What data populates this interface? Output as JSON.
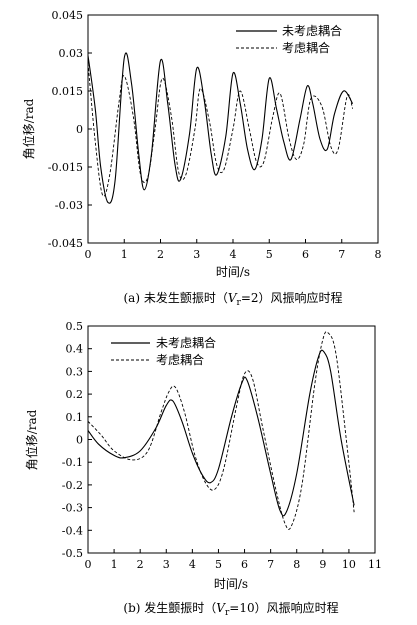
{
  "chart_data": [
    {
      "type": "line",
      "caption_prefix": "(a) 未发生颤振时（",
      "caption_v": "V",
      "caption_sub": "r",
      "caption_suffix": "=2）风振响应时程",
      "xlabel": "时间/s",
      "ylabel": "角位移/rad",
      "xlim": [
        0,
        8
      ],
      "ylim": [
        -0.045,
        0.045
      ],
      "xticks": [
        "0",
        "1",
        "2",
        "3",
        "4",
        "5",
        "6",
        "7",
        "8"
      ],
      "yticks": [
        "0.045",
        "0.03",
        "0.015",
        "0",
        "-0.015",
        "-0.03",
        "-0.045"
      ],
      "legend_position": "top-right",
      "series": [
        {
          "name": "未考虑耦合",
          "style": "solid",
          "x": [
            0,
            0.2,
            0.35,
            0.55,
            0.75,
            1.0,
            1.2,
            1.4,
            1.55,
            1.75,
            2.0,
            2.2,
            2.4,
            2.55,
            2.8,
            3.0,
            3.2,
            3.4,
            3.55,
            3.8,
            4.0,
            4.2,
            4.4,
            4.6,
            4.8,
            5.0,
            5.2,
            5.4,
            5.6,
            5.85,
            6.05,
            6.2,
            6.4,
            6.6,
            6.8,
            7.05,
            7.3
          ],
          "y": [
            0.029,
            0.008,
            -0.015,
            -0.029,
            -0.02,
            0.028,
            0.018,
            -0.01,
            -0.024,
            -0.01,
            0.027,
            0.01,
            -0.014,
            -0.02,
            -0.002,
            0.024,
            0.012,
            -0.01,
            -0.018,
            -0.003,
            0.022,
            0.01,
            -0.008,
            -0.016,
            -0.004,
            0.02,
            0.008,
            -0.005,
            -0.012,
            0.004,
            0.017,
            0.01,
            -0.004,
            -0.008,
            0.006,
            0.015,
            0.01
          ]
        },
        {
          "name": "考虑耦合",
          "style": "dashed",
          "x": [
            0,
            0.2,
            0.4,
            0.6,
            0.85,
            1.0,
            1.25,
            1.45,
            1.65,
            1.85,
            2.05,
            2.3,
            2.5,
            2.7,
            2.95,
            3.1,
            3.35,
            3.55,
            3.75,
            4.0,
            4.2,
            4.45,
            4.65,
            4.85,
            5.1,
            5.3,
            5.55,
            5.75,
            5.95,
            6.15,
            6.45,
            6.7,
            6.9,
            7.15,
            7.3
          ],
          "y": [
            0.026,
            -0.005,
            -0.026,
            -0.018,
            0.01,
            0.021,
            0.005,
            -0.018,
            -0.019,
            0.0,
            0.02,
            0.005,
            -0.017,
            -0.018,
            0.0,
            0.016,
            0.003,
            -0.014,
            -0.016,
            0.0,
            0.015,
            0.0,
            -0.013,
            -0.013,
            0.005,
            0.014,
            -0.004,
            -0.012,
            -0.006,
            0.012,
            0.009,
            -0.007,
            -0.008,
            0.013,
            0.008
          ]
        }
      ]
    },
    {
      "type": "line",
      "caption_prefix": "(b) 发生颤振时（",
      "caption_v": "V",
      "caption_sub": "r",
      "caption_suffix": "=10）风振响应时程",
      "xlabel": "时间/s",
      "ylabel": "角位移/rad",
      "xlim": [
        0,
        11
      ],
      "ylim": [
        -0.5,
        0.5
      ],
      "xticks": [
        "0",
        "1",
        "2",
        "3",
        "4",
        "5",
        "6",
        "7",
        "8",
        "9",
        "10",
        "11"
      ],
      "yticks": [
        "0.5",
        "0.4",
        "0.3",
        "0.2",
        "0.1",
        "0",
        "-0.1",
        "-0.2",
        "-0.3",
        "-0.4",
        "-0.5"
      ],
      "legend_position": "top-left",
      "series": [
        {
          "name": "未考虑耦合",
          "style": "solid",
          "x": [
            0,
            0.4,
            1.0,
            1.4,
            2.0,
            2.6,
            3.0,
            3.25,
            3.6,
            4.0,
            4.4,
            4.7,
            5.0,
            5.5,
            5.9,
            6.1,
            6.5,
            7.0,
            7.35,
            7.6,
            8.0,
            8.5,
            8.85,
            9.05,
            9.3,
            9.7,
            10.2
          ],
          "y": [
            0.04,
            -0.02,
            -0.07,
            -0.08,
            -0.05,
            0.05,
            0.15,
            0.17,
            0.08,
            -0.06,
            -0.16,
            -0.19,
            -0.13,
            0.1,
            0.25,
            0.26,
            0.1,
            -0.15,
            -0.31,
            -0.32,
            -0.15,
            0.2,
            0.37,
            0.385,
            0.3,
            0.0,
            -0.29
          ]
        },
        {
          "name": "考虑耦合",
          "style": "dashed",
          "x": [
            0,
            0.5,
            1.0,
            1.7,
            2.3,
            2.8,
            3.1,
            3.35,
            3.7,
            4.1,
            4.5,
            4.85,
            5.2,
            5.7,
            6.0,
            6.3,
            6.7,
            7.2,
            7.55,
            7.8,
            8.2,
            8.7,
            9.0,
            9.2,
            9.5,
            9.9,
            10.2
          ],
          "y": [
            0.08,
            0.02,
            -0.05,
            -0.09,
            -0.05,
            0.12,
            0.21,
            0.23,
            0.12,
            -0.07,
            -0.19,
            -0.22,
            -0.13,
            0.15,
            0.29,
            0.27,
            0.05,
            -0.22,
            -0.37,
            -0.38,
            -0.2,
            0.25,
            0.44,
            0.47,
            0.38,
            0.0,
            -0.32
          ]
        }
      ]
    }
  ]
}
